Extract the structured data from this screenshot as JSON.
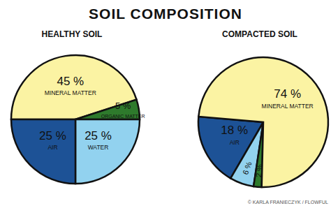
{
  "title": "SOIL COMPOSITION",
  "credit": "© KARLA FRANIECZYK / FLOWFUL",
  "chart_data": [
    {
      "type": "pie",
      "title": "HEALTHY SOIL",
      "categories": [
        "MINERAL MATTER",
        "ORGANIC MATTER",
        "WATER",
        "AIR"
      ],
      "values": [
        45,
        5,
        25,
        25
      ],
      "value_labels": [
        "45 %",
        "5 %",
        "25 %",
        "25 %"
      ],
      "colors": [
        "#fbf3a3",
        "#2e7a2c",
        "#92d2ef",
        "#1d5296"
      ],
      "data_labels": true
    },
    {
      "type": "pie",
      "title": "COMPACTED SOIL",
      "categories": [
        "AIR",
        null,
        null,
        "MINERAL MATTER"
      ],
      "values": [
        18,
        6,
        2,
        74
      ],
      "value_labels": [
        "18 %",
        "6 %",
        "2 %",
        "74 %"
      ],
      "colors": [
        "#1d5296",
        "#92d2ef",
        "#2e7a2c",
        "#fbf3a3"
      ],
      "data_labels": true
    }
  ]
}
